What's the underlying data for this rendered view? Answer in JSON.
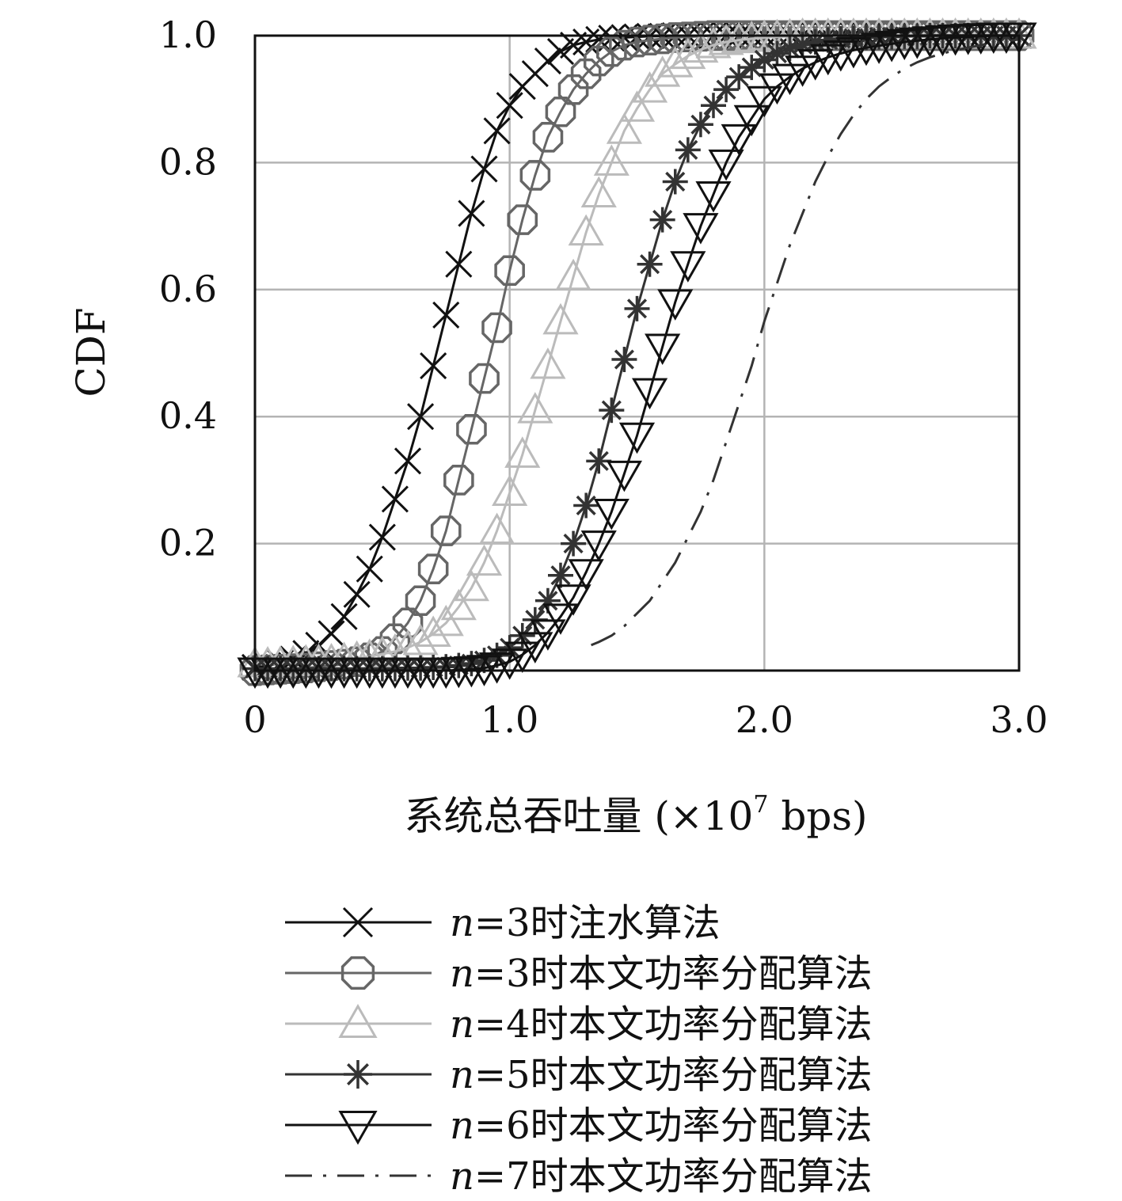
{
  "chart_data": {
    "type": "line",
    "ylabel": "CDF",
    "xlabel": "系统总吞吐量 (×10",
    "xlabel_sup": "7",
    "xlabel_unit": " bps)",
    "xlim": [
      0,
      3.0
    ],
    "ylim": [
      0,
      1.0
    ],
    "xticks": [
      {
        "value": 0,
        "label": "0"
      },
      {
        "value": 1.0,
        "label": "1.0"
      },
      {
        "value": 2.0,
        "label": "2.0"
      },
      {
        "value": 3.0,
        "label": "3.0"
      }
    ],
    "yticks": [
      {
        "value": 0.2,
        "label": "0.2"
      },
      {
        "value": 0.4,
        "label": "0.4"
      },
      {
        "value": 0.6,
        "label": "0.6"
      },
      {
        "value": 0.8,
        "label": "0.8"
      },
      {
        "value": 1.0,
        "label": "1.0"
      }
    ],
    "grid": true,
    "legend_position": "bottom",
    "series": [
      {
        "name": "n=3时注水算法",
        "prefix": "n",
        "suffix": "=3时注水算法",
        "color": "#111111",
        "marker": "x",
        "dash": "",
        "x": [
          0,
          0.05,
          0.1,
          0.15,
          0.2,
          0.25,
          0.3,
          0.35,
          0.4,
          0.45,
          0.5,
          0.55,
          0.6,
          0.65,
          0.7,
          0.75,
          0.8,
          0.85,
          0.9,
          0.95,
          1.0,
          1.05,
          1.1,
          1.15,
          1.2,
          1.25,
          1.3,
          1.35,
          1.4,
          1.45,
          1.5,
          1.55,
          1.6,
          1.65,
          1.7,
          1.75,
          1.8,
          1.85,
          1.9,
          1.95,
          2.0,
          2.05,
          2.1,
          2.15,
          2.2,
          2.25,
          2.3,
          2.35,
          2.4,
          2.45,
          2.5,
          2.55,
          2.6,
          2.65,
          2.7,
          2.75,
          2.8,
          2.85,
          2.9,
          2.95,
          3.0
        ],
        "y": [
          0.005,
          0.008,
          0.012,
          0.018,
          0.027,
          0.04,
          0.058,
          0.085,
          0.12,
          0.16,
          0.21,
          0.27,
          0.33,
          0.4,
          0.48,
          0.56,
          0.64,
          0.72,
          0.79,
          0.85,
          0.89,
          0.92,
          0.94,
          0.96,
          0.975,
          0.985,
          0.99,
          0.994,
          0.996,
          0.997,
          0.998,
          0.999,
          0.999,
          1,
          1,
          1,
          1,
          1,
          1,
          1,
          1,
          1,
          1,
          1,
          1,
          1,
          1,
          1,
          1,
          1,
          1,
          1,
          1,
          1,
          1,
          1,
          1,
          1,
          1,
          1,
          1
        ]
      },
      {
        "name": "n=3时本文功率分配算法",
        "prefix": "n",
        "suffix": "=3时本文功率分配算法",
        "color": "#666666",
        "marker": "octagon",
        "dash": "",
        "x": [
          0,
          0.05,
          0.1,
          0.15,
          0.2,
          0.25,
          0.3,
          0.35,
          0.4,
          0.45,
          0.5,
          0.55,
          0.6,
          0.65,
          0.7,
          0.75,
          0.8,
          0.85,
          0.9,
          0.95,
          1.0,
          1.05,
          1.1,
          1.15,
          1.2,
          1.25,
          1.3,
          1.35,
          1.4,
          1.45,
          1.5,
          1.55,
          1.6,
          1.65,
          1.7,
          1.75,
          1.8,
          1.85,
          1.9,
          1.95,
          2.0,
          2.05,
          2.1,
          2.15,
          2.2,
          2.25,
          2.3,
          2.35,
          2.4,
          2.45,
          2.5,
          2.55,
          2.6,
          2.65,
          2.7,
          2.75,
          2.8,
          2.85,
          2.9,
          2.95,
          3.0
        ],
        "y": [
          0,
          0.001,
          0.002,
          0.003,
          0.004,
          0.006,
          0.008,
          0.01,
          0.014,
          0.02,
          0.03,
          0.05,
          0.075,
          0.11,
          0.16,
          0.22,
          0.3,
          0.38,
          0.46,
          0.54,
          0.63,
          0.71,
          0.78,
          0.84,
          0.88,
          0.915,
          0.94,
          0.96,
          0.975,
          0.985,
          0.99,
          0.993,
          0.995,
          0.997,
          0.998,
          0.999,
          1,
          1,
          1,
          1,
          1,
          1,
          1,
          1,
          1,
          1,
          1,
          1,
          1,
          1,
          1,
          1,
          1,
          1,
          1,
          1,
          1,
          1,
          1,
          1,
          1
        ]
      },
      {
        "name": "n=4时本文功率分配算法",
        "prefix": "n",
        "suffix": "=4时本文功率分配算法",
        "color": "#bbbbbb",
        "marker": "triangle-up",
        "dash": "",
        "x": [
          0,
          0.05,
          0.1,
          0.15,
          0.2,
          0.25,
          0.3,
          0.35,
          0.4,
          0.45,
          0.5,
          0.55,
          0.6,
          0.65,
          0.7,
          0.75,
          0.8,
          0.85,
          0.9,
          0.95,
          1.0,
          1.05,
          1.1,
          1.15,
          1.2,
          1.25,
          1.3,
          1.35,
          1.4,
          1.45,
          1.5,
          1.55,
          1.6,
          1.65,
          1.7,
          1.75,
          1.8,
          1.85,
          1.9,
          1.95,
          2.0,
          2.05,
          2.1,
          2.15,
          2.2,
          2.25,
          2.3,
          2.35,
          2.4,
          2.45,
          2.5,
          2.55,
          2.6,
          2.65,
          2.7,
          2.75,
          2.8,
          2.85,
          2.9,
          2.95,
          3.0
        ],
        "y": [
          0.01,
          0.01,
          0.011,
          0.012,
          0.013,
          0.014,
          0.015,
          0.017,
          0.019,
          0.022,
          0.026,
          0.03,
          0.036,
          0.045,
          0.058,
          0.075,
          0.1,
          0.13,
          0.17,
          0.22,
          0.28,
          0.34,
          0.41,
          0.48,
          0.55,
          0.62,
          0.69,
          0.75,
          0.8,
          0.85,
          0.885,
          0.915,
          0.94,
          0.955,
          0.968,
          0.978,
          0.985,
          0.99,
          0.993,
          0.995,
          0.997,
          0.998,
          0.999,
          1,
          1,
          1,
          1,
          1,
          1,
          1,
          1,
          1,
          1,
          1,
          1,
          1,
          1,
          1,
          1,
          1,
          1
        ]
      },
      {
        "name": "n=5时本文功率分配算法",
        "prefix": "n",
        "suffix": "=5时本文功率分配算法",
        "color": "#333333",
        "marker": "star",
        "dash": "",
        "x": [
          0,
          0.05,
          0.1,
          0.15,
          0.2,
          0.25,
          0.3,
          0.35,
          0.4,
          0.45,
          0.5,
          0.55,
          0.6,
          0.65,
          0.7,
          0.75,
          0.8,
          0.85,
          0.9,
          0.95,
          1.0,
          1.05,
          1.1,
          1.15,
          1.2,
          1.25,
          1.3,
          1.35,
          1.4,
          1.45,
          1.5,
          1.55,
          1.6,
          1.65,
          1.7,
          1.75,
          1.8,
          1.85,
          1.9,
          1.95,
          2.0,
          2.05,
          2.1,
          2.15,
          2.2,
          2.25,
          2.3,
          2.35,
          2.4,
          2.45,
          2.5,
          2.55,
          2.6,
          2.65,
          2.7,
          2.75,
          2.8,
          2.85,
          2.9,
          2.95,
          3.0
        ],
        "y": [
          0.003,
          0.003,
          0.003,
          0.003,
          0.003,
          0.003,
          0.003,
          0.003,
          0.003,
          0.003,
          0.003,
          0.003,
          0.004,
          0.004,
          0.005,
          0.006,
          0.008,
          0.011,
          0.016,
          0.024,
          0.036,
          0.055,
          0.08,
          0.11,
          0.15,
          0.2,
          0.26,
          0.33,
          0.41,
          0.49,
          0.57,
          0.64,
          0.71,
          0.77,
          0.82,
          0.86,
          0.89,
          0.915,
          0.935,
          0.95,
          0.962,
          0.972,
          0.98,
          0.986,
          0.99,
          0.993,
          0.995,
          0.996,
          0.997,
          0.998,
          0.998,
          0.999,
          0.999,
          1,
          1,
          1,
          1,
          1,
          1,
          1,
          1
        ]
      },
      {
        "name": "n=6时本文功率分配算法",
        "prefix": "n",
        "suffix": "=6时本文功率分配算法",
        "color": "#111111",
        "marker": "triangle-down",
        "dash": "",
        "x": [
          0,
          0.05,
          0.1,
          0.15,
          0.2,
          0.25,
          0.3,
          0.35,
          0.4,
          0.45,
          0.5,
          0.55,
          0.6,
          0.65,
          0.7,
          0.75,
          0.8,
          0.85,
          0.9,
          0.95,
          1.0,
          1.05,
          1.1,
          1.15,
          1.2,
          1.25,
          1.3,
          1.35,
          1.4,
          1.45,
          1.5,
          1.55,
          1.6,
          1.65,
          1.7,
          1.75,
          1.8,
          1.85,
          1.9,
          1.95,
          2.0,
          2.05,
          2.1,
          2.15,
          2.2,
          2.25,
          2.3,
          2.35,
          2.4,
          2.45,
          2.5,
          2.55,
          2.6,
          2.65,
          2.7,
          2.75,
          2.8,
          2.85,
          2.9,
          2.95,
          3.0
        ],
        "y": [
          0,
          0,
          0,
          0,
          0,
          0,
          0,
          0,
          0,
          0,
          0,
          0,
          0,
          0,
          0,
          0,
          0.001,
          0.002,
          0.004,
          0.008,
          0.014,
          0.025,
          0.04,
          0.06,
          0.085,
          0.115,
          0.155,
          0.2,
          0.25,
          0.31,
          0.37,
          0.44,
          0.51,
          0.58,
          0.64,
          0.7,
          0.75,
          0.8,
          0.84,
          0.87,
          0.9,
          0.92,
          0.935,
          0.948,
          0.958,
          0.966,
          0.972,
          0.977,
          0.981,
          0.984,
          0.987,
          0.99,
          0.992,
          0.994,
          0.996,
          0.997,
          0.998,
          0.999,
          1,
          1,
          1
        ]
      },
      {
        "name": "n=7时本文功率分配算法",
        "prefix": "n",
        "suffix": "=7时本文功率分配算法",
        "color": "#333333",
        "marker": "none",
        "dash": "34,14,4,14",
        "x": [
          1.32,
          1.35,
          1.4,
          1.45,
          1.5,
          1.55,
          1.6,
          1.65,
          1.7,
          1.75,
          1.8,
          1.85,
          1.9,
          1.95,
          2.0,
          2.05,
          2.1,
          2.15,
          2.2,
          2.25,
          2.3,
          2.35,
          2.4,
          2.45,
          2.5,
          2.55,
          2.6,
          2.65,
          2.7,
          2.75,
          2.8,
          2.85,
          2.9,
          2.95,
          3.0
        ],
        "y": [
          0.04,
          0.045,
          0.055,
          0.07,
          0.09,
          0.11,
          0.14,
          0.17,
          0.21,
          0.25,
          0.3,
          0.36,
          0.42,
          0.48,
          0.55,
          0.61,
          0.67,
          0.72,
          0.77,
          0.81,
          0.845,
          0.875,
          0.9,
          0.92,
          0.935,
          0.948,
          0.958,
          0.966,
          0.972,
          0.977,
          0.981,
          0.985,
          0.988,
          0.991,
          0.994
        ]
      }
    ]
  }
}
